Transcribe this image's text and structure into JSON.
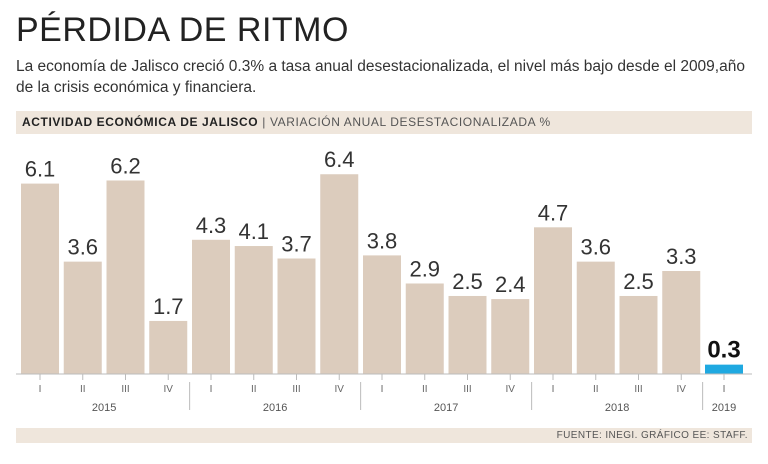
{
  "header": {
    "title": "PÉRDIDA DE RITMO",
    "subtitle": "La economía de Jalisco creció 0.3% a tasa anual desestacionalizada, el nivel más bajo desde el 2009,año de la crisis económica y financiera."
  },
  "band": {
    "title": "ACTIVIDAD ECONÓMICA DE JALISCO",
    "separator": "|",
    "unit": "VARIACIÓN ANUAL DESESTACIONALIZADA %"
  },
  "footer": {
    "source": "FUENTE: INEGI. GRÁFICO EE: STAFF."
  },
  "colors": {
    "bar": "#dcccbd",
    "highlight": "#1fa9e1",
    "axis": "#bbbbbb",
    "band": "#efe6dc"
  },
  "chart_data": {
    "type": "bar",
    "title": "ACTIVIDAD ECONÓMICA DE JALISCO",
    "ylabel": "VARIACIÓN ANUAL DESESTACIONALIZADA %",
    "xlabel": "",
    "ylim": [
      0,
      6.6
    ],
    "categories": [
      "I",
      "II",
      "III",
      "IV",
      "I",
      "II",
      "III",
      "IV",
      "I",
      "II",
      "III",
      "IV",
      "I",
      "II",
      "III",
      "IV",
      "I"
    ],
    "years": [
      "2015",
      "2015",
      "2015",
      "2015",
      "2016",
      "2016",
      "2016",
      "2016",
      "2017",
      "2017",
      "2017",
      "2017",
      "2018",
      "2018",
      "2018",
      "2018",
      "2019"
    ],
    "year_labels": [
      "2015",
      "2016",
      "2017",
      "2018",
      "2019"
    ],
    "values": [
      6.1,
      3.6,
      6.2,
      1.7,
      4.3,
      4.1,
      3.7,
      6.4,
      3.8,
      2.9,
      2.5,
      2.4,
      4.7,
      3.6,
      2.5,
      3.3,
      0.3
    ],
    "value_labels": [
      "6.1",
      "3.6",
      "6.2",
      "1.7",
      "4.3",
      "4.1",
      "3.7",
      "6.4",
      "3.8",
      "2.9",
      "2.5",
      "2.4",
      "4.7",
      "3.6",
      "2.5",
      "3.3",
      "0.3"
    ],
    "highlight_index": 16
  }
}
